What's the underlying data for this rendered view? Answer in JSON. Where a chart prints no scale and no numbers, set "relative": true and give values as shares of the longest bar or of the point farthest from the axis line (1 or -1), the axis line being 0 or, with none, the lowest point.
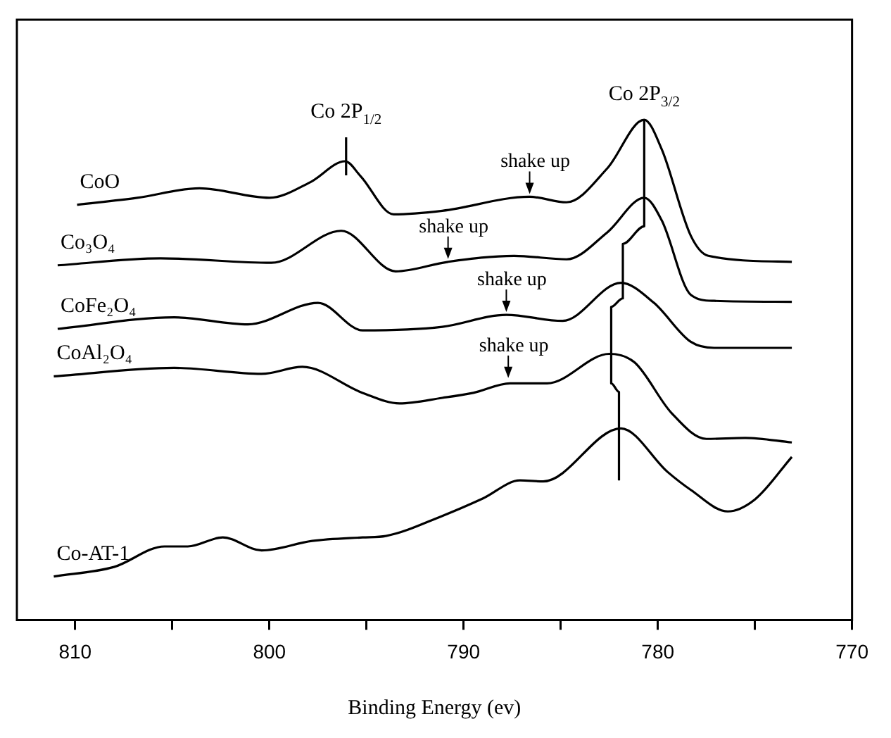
{
  "chart_data": {
    "type": "line",
    "xlabel": "Binding Energy (ev)",
    "xlim": [
      813,
      770
    ],
    "xticks": [
      810,
      {
        "value": 805,
        "label": null
      },
      800,
      {
        "value": 795,
        "label": null
      },
      790,
      {
        "value": 785,
        "label": null
      },
      780,
      {
        "value": 775,
        "label": null
      },
      770
    ],
    "relative": true,
    "legend": false,
    "marker": "none",
    "line_style": "solid",
    "grid": false,
    "series": [
      {
        "name": "CoO",
        "color": "#000000",
        "x": [
          809.9,
          806.8,
          803.6,
          800.0,
          797.9,
          796.1,
          795.3,
          793.6,
          791.1,
          786.6,
          784.7,
          782.6,
          780.7,
          779.8,
          778.3,
          777.4,
          773.1
        ],
        "values": [
          0.83,
          0.844,
          0.863,
          0.844,
          0.875,
          0.917,
          0.887,
          0.811,
          0.818,
          0.846,
          0.835,
          0.903,
          1.0,
          0.941,
          0.768,
          0.728,
          0.716
        ]
      },
      {
        "name": "Co₃O₄",
        "color": "#000000",
        "x": [
          810.9,
          805.6,
          799.9,
          796.3,
          793.5,
          790.8,
          787.4,
          784.7,
          782.6,
          780.7,
          779.8,
          778.3,
          777.1,
          773.1
        ],
        "values": [
          0.709,
          0.723,
          0.714,
          0.778,
          0.697,
          0.716,
          0.728,
          0.721,
          0.775,
          0.844,
          0.799,
          0.65,
          0.638,
          0.636
        ]
      },
      {
        "name": "CoFe₂O₄",
        "color": "#000000",
        "x": [
          810.9,
          804.9,
          801.1,
          797.5,
          795.2,
          791.1,
          787.8,
          784.9,
          781.9,
          780.2,
          778.3,
          777.1,
          773.1
        ],
        "values": [
          0.582,
          0.605,
          0.591,
          0.634,
          0.579,
          0.586,
          0.61,
          0.598,
          0.674,
          0.634,
          0.556,
          0.544,
          0.544
        ]
      },
      {
        "name": "CoAl₂O₄",
        "color": "#000000",
        "x": [
          811.1,
          804.9,
          800.4,
          798.3,
          795.2,
          793.3,
          791.1,
          789.5,
          787.6,
          785.7,
          782.5,
          781.2,
          779.3,
          777.5,
          775.5,
          773.1
        ],
        "values": [
          0.487,
          0.504,
          0.492,
          0.506,
          0.454,
          0.433,
          0.444,
          0.454,
          0.473,
          0.473,
          0.532,
          0.515,
          0.414,
          0.362,
          0.364,
          0.355
        ]
      },
      {
        "name": "Co-AT-1",
        "color": "#000000",
        "x": [
          811.1,
          808.0,
          805.4,
          804.2,
          802.4,
          800.4,
          797.8,
          795.2,
          794.0,
          791.1,
          789.0,
          787.1,
          785.9,
          781.9,
          779.5,
          778.3,
          776.4,
          775.0,
          773.1
        ],
        "values": [
          0.087,
          0.106,
          0.147,
          0.147,
          0.165,
          0.139,
          0.158,
          0.165,
          0.168,
          0.208,
          0.243,
          0.279,
          0.277,
          0.383,
          0.296,
          0.26,
          0.217,
          0.241,
          0.326
        ]
      },
      {
        "color": "#000000",
        "x": [
          780.7,
          780.7,
          781.8,
          781.8,
          782.4,
          782.4,
          782.0,
          782.0
        ],
        "values": [
          1.0,
          0.787,
          0.752,
          0.643,
          0.626,
          0.473,
          0.456,
          0.279
        ]
      },
      {
        "color": "#000000",
        "x": [
          796.05,
          796.05
        ],
        "values": [
          0.965,
          0.889
        ]
      }
    ],
    "annotations": [
      {
        "text": "Co 2P$_{1/2}$",
        "x": 796.05,
        "y": 0.965
      },
      {
        "text": "Co 2P$_{3/2}$",
        "x": 780.7,
        "y": 1.0
      },
      {
        "text": "shake up",
        "x": 786.6,
        "y": 0.846
      },
      {
        "text": "shake up",
        "x": 790.8,
        "y": 0.716
      },
      {
        "text": "shake up",
        "x": 787.8,
        "y": 0.61
      },
      {
        "text": "shake up",
        "x": 787.7,
        "y": 0.478
      }
    ]
  }
}
